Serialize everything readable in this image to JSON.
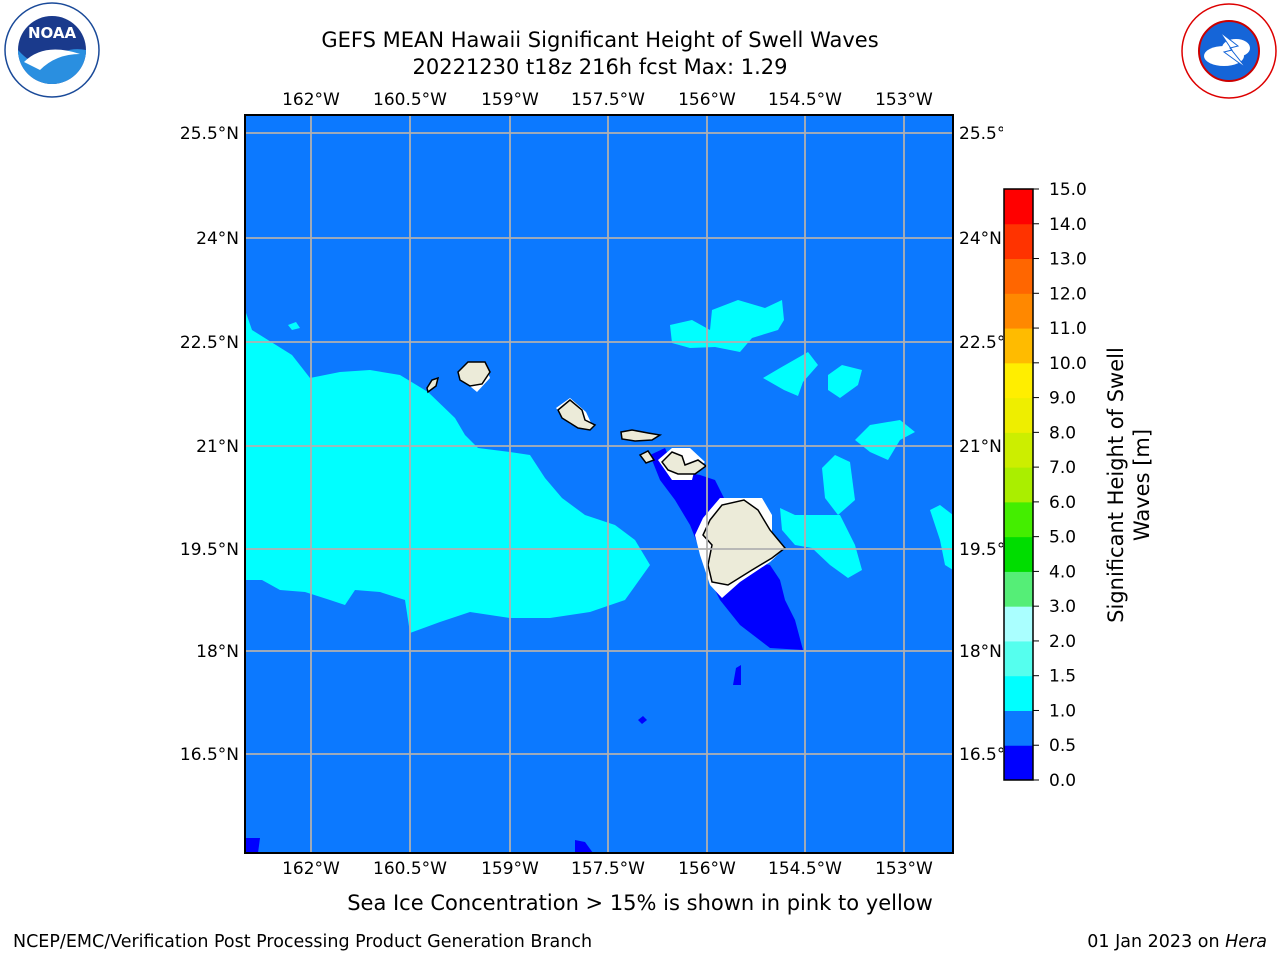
{
  "title": {
    "line1": "GEFS MEAN Hawaii Significant Height of Swell Waves",
    "line2": "20221230 t18z 216h fcst   Max: 1.29"
  },
  "logos": {
    "left": "noaa-logo",
    "right": "nws-logo"
  },
  "map": {
    "lon_ticks": [
      "162°W",
      "160.5°W",
      "159°W",
      "157.5°W",
      "156°W",
      "154.5°W",
      "153°W"
    ],
    "lat_ticks": [
      "25.5°N",
      "24°N",
      "22.5°N",
      "21°N",
      "19.5°N",
      "18°N",
      "16.5°N"
    ],
    "lon_range": [
      -163.0,
      -152.3
    ],
    "lat_range": [
      15.5,
      26.2
    ],
    "colors": {
      "ocean_band_1": "#0c79ff",
      "ocean_band_0": "#0000ff",
      "ocean_band_2": "#00ffff",
      "land": "#ecebd9",
      "grid": "#b0b0b0"
    }
  },
  "colorbar": {
    "label": "Significant Height of Swell Waves [m]",
    "tick_labels": [
      "15.0",
      "14.0",
      "13.0",
      "12.0",
      "11.0",
      "10.0",
      "9.0",
      "8.0",
      "7.0",
      "6.0",
      "5.0",
      "4.0",
      "3.0",
      "2.0",
      "1.5",
      "1.0",
      "0.5",
      "0.0"
    ],
    "bands": [
      {
        "from": 0.0,
        "to": 0.5,
        "color": "#0000ff"
      },
      {
        "from": 0.5,
        "to": 1.0,
        "color": "#0c79ff"
      },
      {
        "from": 1.0,
        "to": 1.5,
        "color": "#00ffff"
      },
      {
        "from": 1.5,
        "to": 2.0,
        "color": "#55ffee"
      },
      {
        "from": 2.0,
        "to": 3.0,
        "color": "#aaffff"
      },
      {
        "from": 3.0,
        "to": 4.0,
        "color": "#55ee77"
      },
      {
        "from": 4.0,
        "to": 5.0,
        "color": "#00dd00"
      },
      {
        "from": 5.0,
        "to": 6.0,
        "color": "#44ee00"
      },
      {
        "from": 6.0,
        "to": 7.0,
        "color": "#aaee00"
      },
      {
        "from": 7.0,
        "to": 8.0,
        "color": "#ccee00"
      },
      {
        "from": 8.0,
        "to": 9.0,
        "color": "#eeee00"
      },
      {
        "from": 9.0,
        "to": 10.0,
        "color": "#ffee00"
      },
      {
        "from": 10.0,
        "to": 11.0,
        "color": "#ffbb00"
      },
      {
        "from": 11.0,
        "to": 12.0,
        "color": "#ff8800"
      },
      {
        "from": 12.0,
        "to": 13.0,
        "color": "#ff6600"
      },
      {
        "from": 13.0,
        "to": 14.0,
        "color": "#ff3300"
      },
      {
        "from": 14.0,
        "to": 15.0,
        "color": "#ff0000"
      }
    ]
  },
  "caption": "Sea Ice Concentration > 15% is shown in pink to yellow",
  "footer": {
    "left": "NCEP/EMC/Verification Post Processing Product Generation Branch",
    "right_prefix": "01 Jan 2023 on ",
    "right_host": "Hera"
  }
}
